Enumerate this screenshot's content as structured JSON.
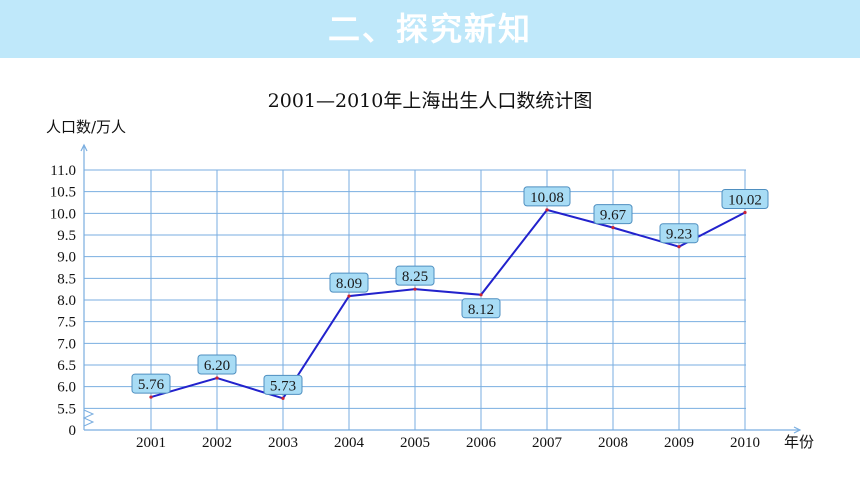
{
  "header": {
    "title": "二、探究新知"
  },
  "colors": {
    "banner": "#bfe8fa",
    "grid": "#7aaee0",
    "line": "#2222cc",
    "point": "#cc2233",
    "label_fill": "#a8dcf5",
    "label_stroke": "#4f8fc0"
  },
  "chart_data": {
    "type": "line",
    "title": "2001—2010年上海出生人口数统计图",
    "ylabel": "人口数/万人",
    "xlabel": "年份",
    "categories": [
      "2001",
      "2002",
      "2003",
      "2004",
      "2005",
      "2006",
      "2007",
      "2008",
      "2009",
      "2010"
    ],
    "values": [
      5.76,
      6.2,
      5.73,
      8.09,
      8.25,
      8.12,
      10.08,
      9.67,
      9.23,
      10.02
    ],
    "data_labels": [
      "5.76",
      "6.20",
      "5.73",
      "8.09",
      "8.25",
      "8.12",
      "10.08",
      "9.67",
      "9.23",
      "10.02"
    ],
    "label_positions": [
      "above",
      "above",
      "above",
      "above",
      "above",
      "below",
      "above",
      "above",
      "above",
      "above"
    ],
    "y_ticks": [
      "0",
      "5.5",
      "6.0",
      "6.5",
      "7.0",
      "7.5",
      "8.0",
      "8.5",
      "9.0",
      "9.5",
      "10.0",
      "10.5",
      "11.0"
    ],
    "y_tick_values": [
      5.0,
      5.5,
      6.0,
      6.5,
      7.0,
      7.5,
      8.0,
      8.5,
      9.0,
      9.5,
      10.0,
      10.5,
      11.0
    ],
    "ylim": [
      5.0,
      11.0
    ],
    "axis_break": true,
    "grid": true
  }
}
